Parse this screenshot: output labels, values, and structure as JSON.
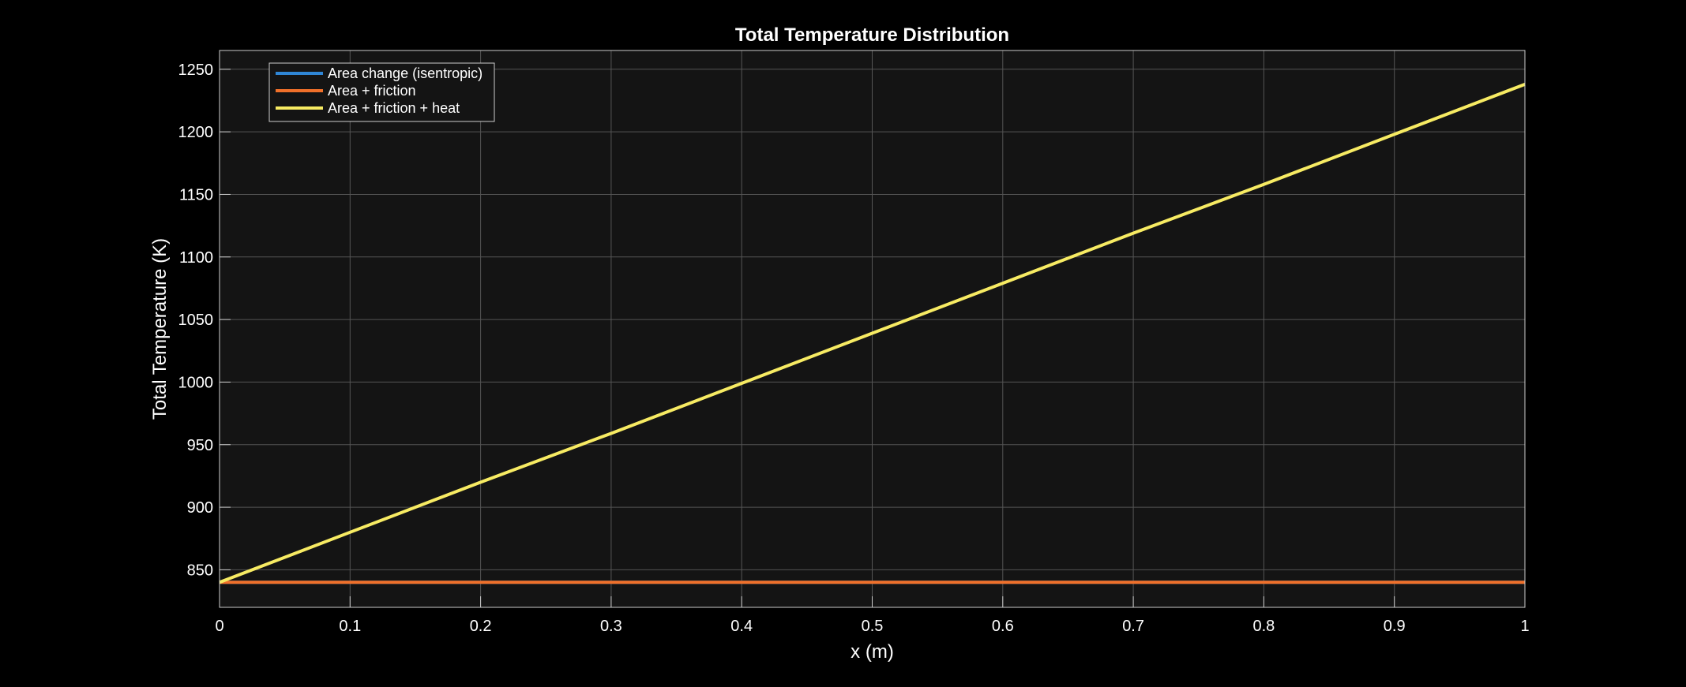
{
  "chart_data": {
    "type": "line",
    "title": "Total Temperature Distribution",
    "xlabel": "x (m)",
    "ylabel": "Total Temperature (K)",
    "xlim": [
      0,
      1
    ],
    "ylim": [
      820,
      1265
    ],
    "xticks": [
      0,
      0.1,
      0.2,
      0.3,
      0.4,
      0.5,
      0.6,
      0.7,
      0.8,
      0.9,
      1
    ],
    "xtick_labels": [
      "0",
      "0.1",
      "0.2",
      "0.3",
      "0.4",
      "0.5",
      "0.6",
      "0.7",
      "0.8",
      "0.9",
      "1"
    ],
    "yticks": [
      850,
      900,
      950,
      1000,
      1050,
      1100,
      1150,
      1200,
      1250
    ],
    "ytick_labels": [
      "850",
      "900",
      "950",
      "1000",
      "1050",
      "1100",
      "1150",
      "1200",
      "1250"
    ],
    "grid": true,
    "legend_position": "top-left",
    "colors": {
      "figure_background": "#000000",
      "axes_background": "#141414",
      "grid": "#555555",
      "axes_edge": "#cccccc",
      "text": "#ffffff"
    },
    "series": [
      {
        "name": "Area change (isentropic)",
        "color": "#2f86d6",
        "x": [
          0,
          1
        ],
        "y": [
          840,
          840
        ]
      },
      {
        "name": "Area + friction",
        "color": "#f0702a",
        "x": [
          0,
          1
        ],
        "y": [
          840,
          840
        ]
      },
      {
        "name": "Area + friction + heat",
        "color": "#f7eb63",
        "x": [
          0,
          0.1,
          0.2,
          0.3,
          0.4,
          0.5,
          0.6,
          0.7,
          0.8,
          0.9,
          1
        ],
        "y": [
          840,
          880,
          920,
          959,
          999,
          1039,
          1079,
          1119,
          1158,
          1198,
          1238
        ]
      }
    ]
  }
}
